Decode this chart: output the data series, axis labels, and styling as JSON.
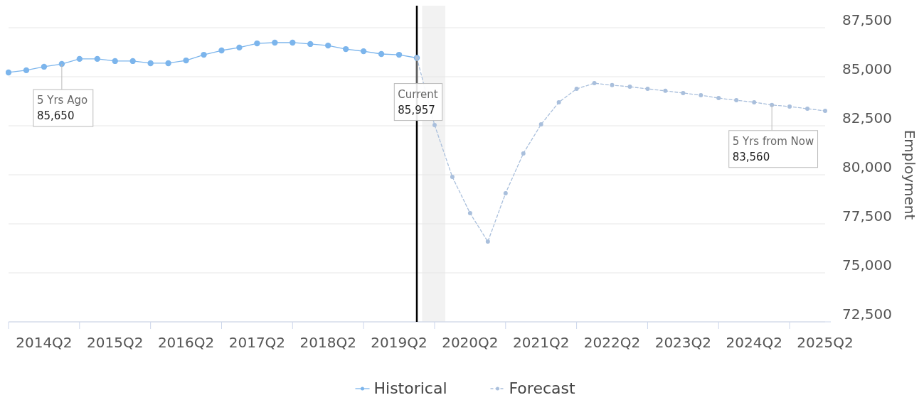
{
  "chart_data": {
    "type": "line",
    "ylabel": "Employment",
    "categories": [
      null,
      null,
      "2014Q2",
      null,
      null,
      null,
      "2015Q2",
      null,
      null,
      null,
      "2016Q2",
      null,
      null,
      null,
      "2017Q2",
      null,
      null,
      null,
      "2018Q2",
      null,
      null,
      null,
      "2019Q2",
      null,
      null,
      null,
      "2020Q2",
      null,
      null,
      null,
      "2021Q2",
      null,
      null,
      null,
      "2022Q2",
      null,
      null,
      null,
      "2023Q2",
      null,
      null,
      null,
      "2024Q2",
      null,
      null,
      null,
      "2025Q2"
    ],
    "ylim": [
      72500,
      87500
    ],
    "yticks": [
      {
        "value": 72500,
        "label": "72,500"
      },
      {
        "value": 75000,
        "label": "75,000"
      },
      {
        "value": 77500,
        "label": "77,500"
      },
      {
        "value": 80000,
        "label": "80,000"
      },
      {
        "value": 82500,
        "label": "82,500"
      },
      {
        "value": 85000,
        "label": "85,000"
      },
      {
        "value": 87500,
        "label": "87,500"
      }
    ],
    "grid": "y",
    "legend": "bottom",
    "marker": "circle",
    "series": [
      {
        "name": "Historical",
        "color": "#7cb5ec",
        "line_style": "solid",
        "values": [
          85220,
          85330,
          85510,
          85650,
          85910,
          85910,
          85800,
          85800,
          85690,
          85690,
          85830,
          86120,
          86340,
          86490,
          86700,
          86740,
          86740,
          86670,
          86590,
          86410,
          86300,
          86160,
          86120,
          85960,
          null,
          null,
          null,
          null,
          null,
          null,
          null,
          null,
          null,
          null,
          null,
          null,
          null,
          null,
          null,
          null,
          null,
          null,
          null,
          null,
          null,
          null,
          null
        ]
      },
      {
        "name": "Forecast",
        "color": "#a9bfdc",
        "line_style": "dashed",
        "values": [
          null,
          null,
          null,
          null,
          null,
          null,
          null,
          null,
          null,
          null,
          null,
          null,
          null,
          null,
          null,
          null,
          null,
          null,
          null,
          null,
          null,
          null,
          null,
          85960,
          82540,
          79890,
          78040,
          76590,
          79060,
          81090,
          82570,
          83700,
          84380,
          84670,
          84570,
          84490,
          84380,
          84280,
          84170,
          84060,
          83910,
          83800,
          83700,
          83560,
          83480,
          83370,
          83260
        ]
      }
    ],
    "annotations": [
      {
        "text": "5 Yrs Ago\n85,650",
        "y": 85650
      },
      {
        "text": "Current\n85,957",
        "y": 85957
      },
      {
        "text": "5 Yrs from Now\n83,560",
        "y": 83560
      }
    ]
  }
}
